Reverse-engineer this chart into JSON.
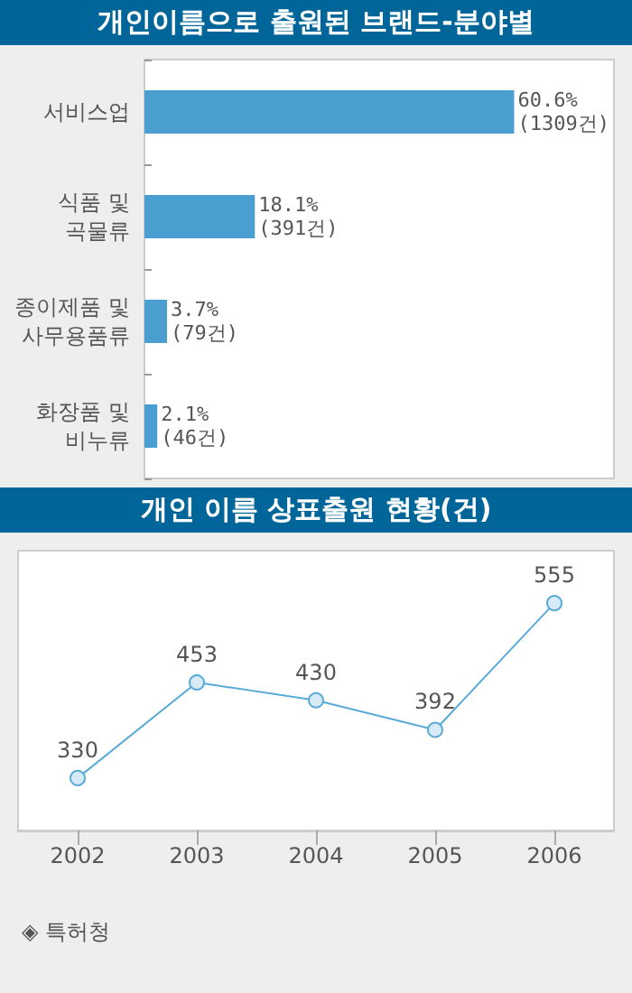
{
  "chart_data": [
    {
      "type": "bar",
      "title": "개인이름으로 출원된 브랜드-분야별",
      "orientation": "horizontal",
      "categories": [
        "서비스업",
        "식품 및\n곡물류",
        "종이제품 및\n사무용품류",
        "화장품 및\n비누류"
      ],
      "values": [
        60.6,
        18.1,
        3.7,
        2.1
      ],
      "value_labels": [
        "60.6%\n(1309건)",
        "18.1%\n(391건)",
        "3.7%\n(79건)",
        "2.1%\n(46건)"
      ],
      "color": "#4a9fd0",
      "tick_labels": "y",
      "grid": false
    },
    {
      "type": "line",
      "title": "개인 이름 상표출원 현황(건)",
      "categories": [
        "2002",
        "2003",
        "2004",
        "2005",
        "2006"
      ],
      "values": [
        330,
        453,
        430,
        392,
        555
      ],
      "data_labels": true,
      "color": "#5aaad8",
      "marker": "circle",
      "line_style": "solid",
      "tick_labels": "x",
      "grid": false,
      "annotations": [
        "◈ 특허청"
      ]
    }
  ]
}
